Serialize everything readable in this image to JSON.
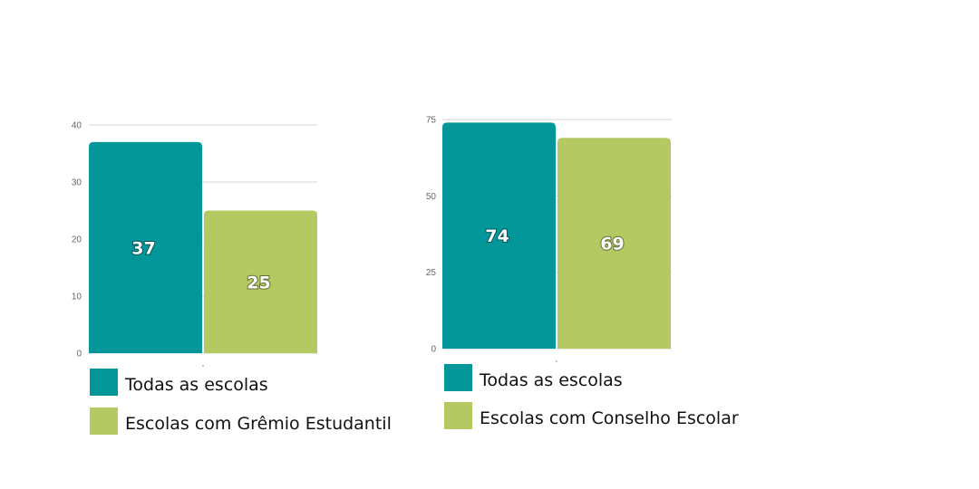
{
  "chart_data": [
    {
      "type": "bar",
      "categories": [
        "Todas as escolas",
        "Escolas com Grêmio Estudantil"
      ],
      "values": [
        37,
        25
      ],
      "ylim": [
        0,
        40
      ],
      "yticks": [
        0,
        10,
        20,
        30,
        40
      ],
      "colors": [
        "#03979a",
        "#b4c962"
      ],
      "data_labels": [
        "37",
        "25"
      ],
      "legend": [
        "Todas as escolas",
        "Escolas com Grêmio Estudantil"
      ],
      "legend_position": "bottom",
      "grid": true
    },
    {
      "type": "bar",
      "categories": [
        "Todas as escolas",
        "Escolas com Conselho Escolar"
      ],
      "values": [
        74,
        69
      ],
      "ylim": [
        0,
        75
      ],
      "yticks": [
        0,
        25,
        50,
        75
      ],
      "colors": [
        "#03979a",
        "#b4c962"
      ],
      "data_labels": [
        "74",
        "69"
      ],
      "legend": [
        "Todas as escolas",
        "Escolas com Conselho Escolar"
      ],
      "legend_position": "bottom",
      "grid": true
    }
  ]
}
